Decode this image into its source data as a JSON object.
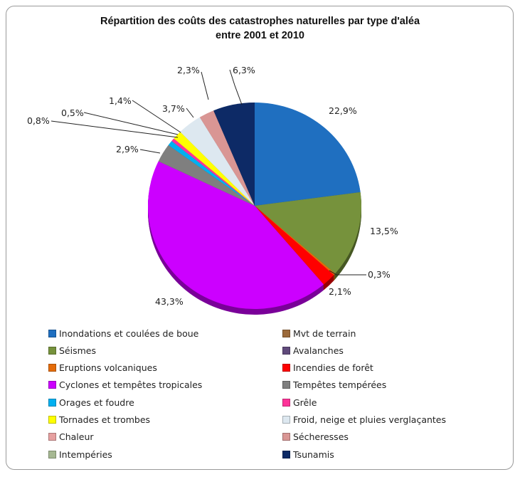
{
  "chart_data": {
    "type": "pie",
    "title": [
      "Répartition des coûts des catastrophes naturelles par type d'aléa",
      "entre 2001  et 2010"
    ],
    "legend_position": "bottom",
    "slices": [
      {
        "name": "Inondations et coulées de boue",
        "value": 22.9,
        "label": "22,9%",
        "color": "#1f6fc0"
      },
      {
        "name": "Mvt de terrain",
        "value": 0,
        "label": "",
        "color": "#9c6a3a"
      },
      {
        "name": "Séismes",
        "value": 13.5,
        "label": "13,5%",
        "color": "#76923c"
      },
      {
        "name": "Avalanches",
        "value": 0,
        "label": "",
        "color": "#604a7b"
      },
      {
        "name": "Eruptions volcaniques",
        "value": 0.3,
        "label": "0,3%",
        "color": "#e46c0a"
      },
      {
        "name": "Incendies de forêt",
        "value": 2.1,
        "label": "2,1%",
        "color": "#ff0000"
      },
      {
        "name": "Cyclones et tempêtes tropicales",
        "value": 43.3,
        "label": "43,3%",
        "color": "#cc00ff"
      },
      {
        "name": "Tempêtes tempérées",
        "value": 2.9,
        "label": "2,9%",
        "color": "#7f7f7f"
      },
      {
        "name": "Orages et foudre",
        "value": 0.8,
        "label": "0,8%",
        "color": "#00b0f0"
      },
      {
        "name": "Grêle",
        "value": 0.5,
        "label": "0,5%",
        "color": "#ff3399"
      },
      {
        "name": "Tornades et trombes",
        "value": 1.4,
        "label": "1,4%",
        "color": "#ffff00"
      },
      {
        "name": "Froid, neige et pluies verglaçantes",
        "value": 3.7,
        "label": "3,7%",
        "color": "#dde8f0"
      },
      {
        "name": "Chaleur",
        "value": 0,
        "label": "",
        "color": "#e6a0a0"
      },
      {
        "name": "Sécheresses",
        "value": 2.3,
        "label": "2,3%",
        "color": "#d99694"
      },
      {
        "name": "Intempéries",
        "value": 0,
        "label": "",
        "color": "#a6b892"
      },
      {
        "name": "Tsunamis",
        "value": 6.3,
        "label": "6,3%",
        "color": "#0d2a66"
      }
    ]
  }
}
